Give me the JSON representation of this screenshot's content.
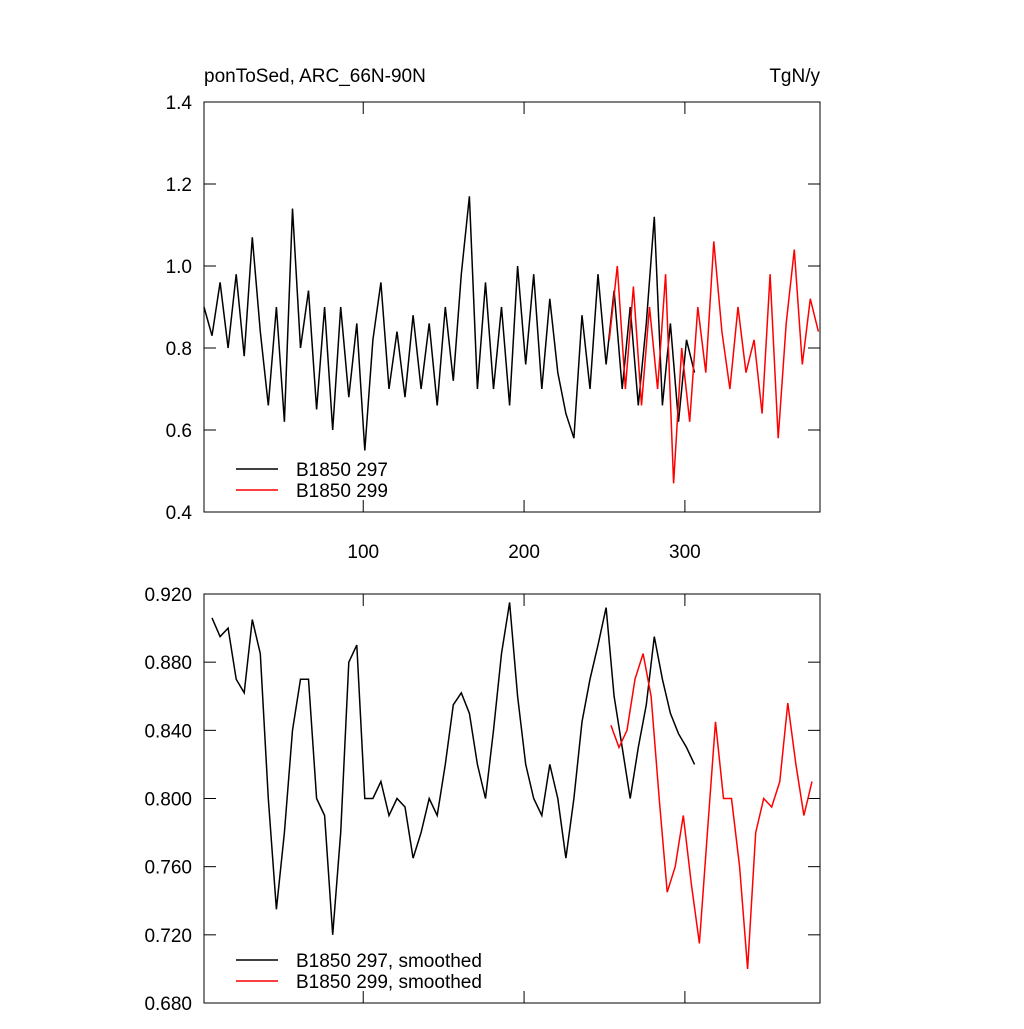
{
  "chart_data": [
    {
      "type": "line",
      "title": "ponToSed, ARC_66N-90N",
      "units": "TgN/y",
      "xlim": [
        1,
        384
      ],
      "xticks": [
        100,
        200,
        300
      ],
      "ylim": [
        0.4,
        1.4
      ],
      "yticks": [
        1.4,
        1.2,
        {
          "value": 1.0,
          "label": "1.0"
        },
        0.8,
        0.6,
        0.4
      ],
      "legend": "lower left",
      "series": [
        {
          "name": "B1850 297",
          "color": "#000000",
          "x": [
            1,
            6,
            11,
            16,
            21,
            26,
            31,
            36,
            41,
            46,
            51,
            56,
            61,
            66,
            71,
            76,
            81,
            86,
            91,
            96,
            101,
            106,
            111,
            116,
            121,
            126,
            131,
            136,
            141,
            146,
            151,
            156,
            161,
            166,
            171,
            176,
            181,
            186,
            191,
            196,
            201,
            206,
            211,
            216,
            221,
            226,
            231,
            236,
            241,
            246,
            251,
            256,
            261,
            266,
            271,
            276,
            281,
            286,
            291,
            296,
            301,
            306
          ],
          "values": [
            0.9,
            0.83,
            0.96,
            0.8,
            0.98,
            0.78,
            1.07,
            0.84,
            0.66,
            0.9,
            0.62,
            1.14,
            0.8,
            0.94,
            0.65,
            0.9,
            0.6,
            0.9,
            0.68,
            0.86,
            0.55,
            0.82,
            0.96,
            0.7,
            0.84,
            0.68,
            0.88,
            0.7,
            0.86,
            0.66,
            0.9,
            0.72,
            0.98,
            1.17,
            0.7,
            0.96,
            0.7,
            0.9,
            0.66,
            1.0,
            0.76,
            0.98,
            0.7,
            0.92,
            0.74,
            0.64,
            0.58,
            0.88,
            0.7,
            0.98,
            0.76,
            0.94,
            0.7,
            0.9,
            0.66,
            0.86,
            1.12,
            0.66,
            0.86,
            0.62,
            0.82,
            0.74
          ]
        },
        {
          "name": "B1850 299",
          "color": "#ff0000",
          "x": [
            253,
            258,
            263,
            268,
            273,
            278,
            283,
            288,
            293,
            298,
            303,
            308,
            313,
            318,
            323,
            328,
            333,
            338,
            343,
            348,
            353,
            358,
            363,
            368,
            373,
            378,
            383
          ],
          "values": [
            0.82,
            1.0,
            0.7,
            0.95,
            0.66,
            0.9,
            0.7,
            0.98,
            0.47,
            0.8,
            0.62,
            0.9,
            0.74,
            1.06,
            0.84,
            0.7,
            0.9,
            0.74,
            0.82,
            0.64,
            0.98,
            0.58,
            0.86,
            1.04,
            0.76,
            0.92,
            0.84
          ]
        }
      ]
    },
    {
      "type": "line",
      "xlim": [
        1,
        384
      ],
      "xticks": [
        100,
        200,
        300
      ],
      "ylim": [
        0.68,
        0.92
      ],
      "yticks": [
        {
          "value": 0.92,
          "label": "0.920"
        },
        {
          "value": 0.88,
          "label": "0.880"
        },
        {
          "value": 0.84,
          "label": "0.840"
        },
        {
          "value": 0.8,
          "label": "0.800"
        },
        {
          "value": 0.76,
          "label": "0.760"
        },
        {
          "value": 0.72,
          "label": "0.720"
        },
        {
          "value": 0.68,
          "label": "0.680"
        }
      ],
      "legend": "lower left",
      "series": [
        {
          "name": "B1850 297, smoothed",
          "color": "#000000",
          "x": [
            6,
            11,
            16,
            21,
            26,
            31,
            36,
            41,
            46,
            51,
            56,
            61,
            66,
            71,
            76,
            81,
            86,
            91,
            96,
            101,
            106,
            111,
            116,
            121,
            126,
            131,
            136,
            141,
            146,
            151,
            156,
            161,
            166,
            171,
            176,
            181,
            186,
            191,
            196,
            201,
            206,
            211,
            216,
            221,
            226,
            231,
            236,
            241,
            246,
            251,
            256,
            261,
            266,
            271,
            276,
            281,
            286,
            291,
            296,
            301,
            306
          ],
          "values": [
            0.906,
            0.895,
            0.9,
            0.87,
            0.862,
            0.905,
            0.885,
            0.8,
            0.735,
            0.78,
            0.84,
            0.87,
            0.87,
            0.8,
            0.79,
            0.72,
            0.78,
            0.88,
            0.89,
            0.8,
            0.8,
            0.81,
            0.79,
            0.8,
            0.795,
            0.765,
            0.78,
            0.8,
            0.79,
            0.82,
            0.855,
            0.862,
            0.85,
            0.82,
            0.8,
            0.84,
            0.885,
            0.915,
            0.86,
            0.82,
            0.8,
            0.79,
            0.82,
            0.8,
            0.765,
            0.8,
            0.845,
            0.87,
            0.89,
            0.912,
            0.86,
            0.83,
            0.8,
            0.83,
            0.855,
            0.895,
            0.87,
            0.85,
            0.838,
            0.83,
            0.82
          ]
        },
        {
          "name": "B1850 299, smoothed",
          "color": "#ff0000",
          "x": [
            254,
            259,
            264,
            269,
            274,
            279,
            284,
            289,
            294,
            299,
            304,
            309,
            314,
            319,
            324,
            329,
            334,
            339,
            344,
            349,
            354,
            359,
            364,
            369,
            374,
            379
          ],
          "values": [
            0.843,
            0.83,
            0.84,
            0.87,
            0.885,
            0.86,
            0.8,
            0.745,
            0.76,
            0.79,
            0.75,
            0.715,
            0.78,
            0.845,
            0.8,
            0.8,
            0.76,
            0.7,
            0.78,
            0.8,
            0.795,
            0.81,
            0.856,
            0.82,
            0.79,
            0.81
          ]
        }
      ]
    }
  ]
}
